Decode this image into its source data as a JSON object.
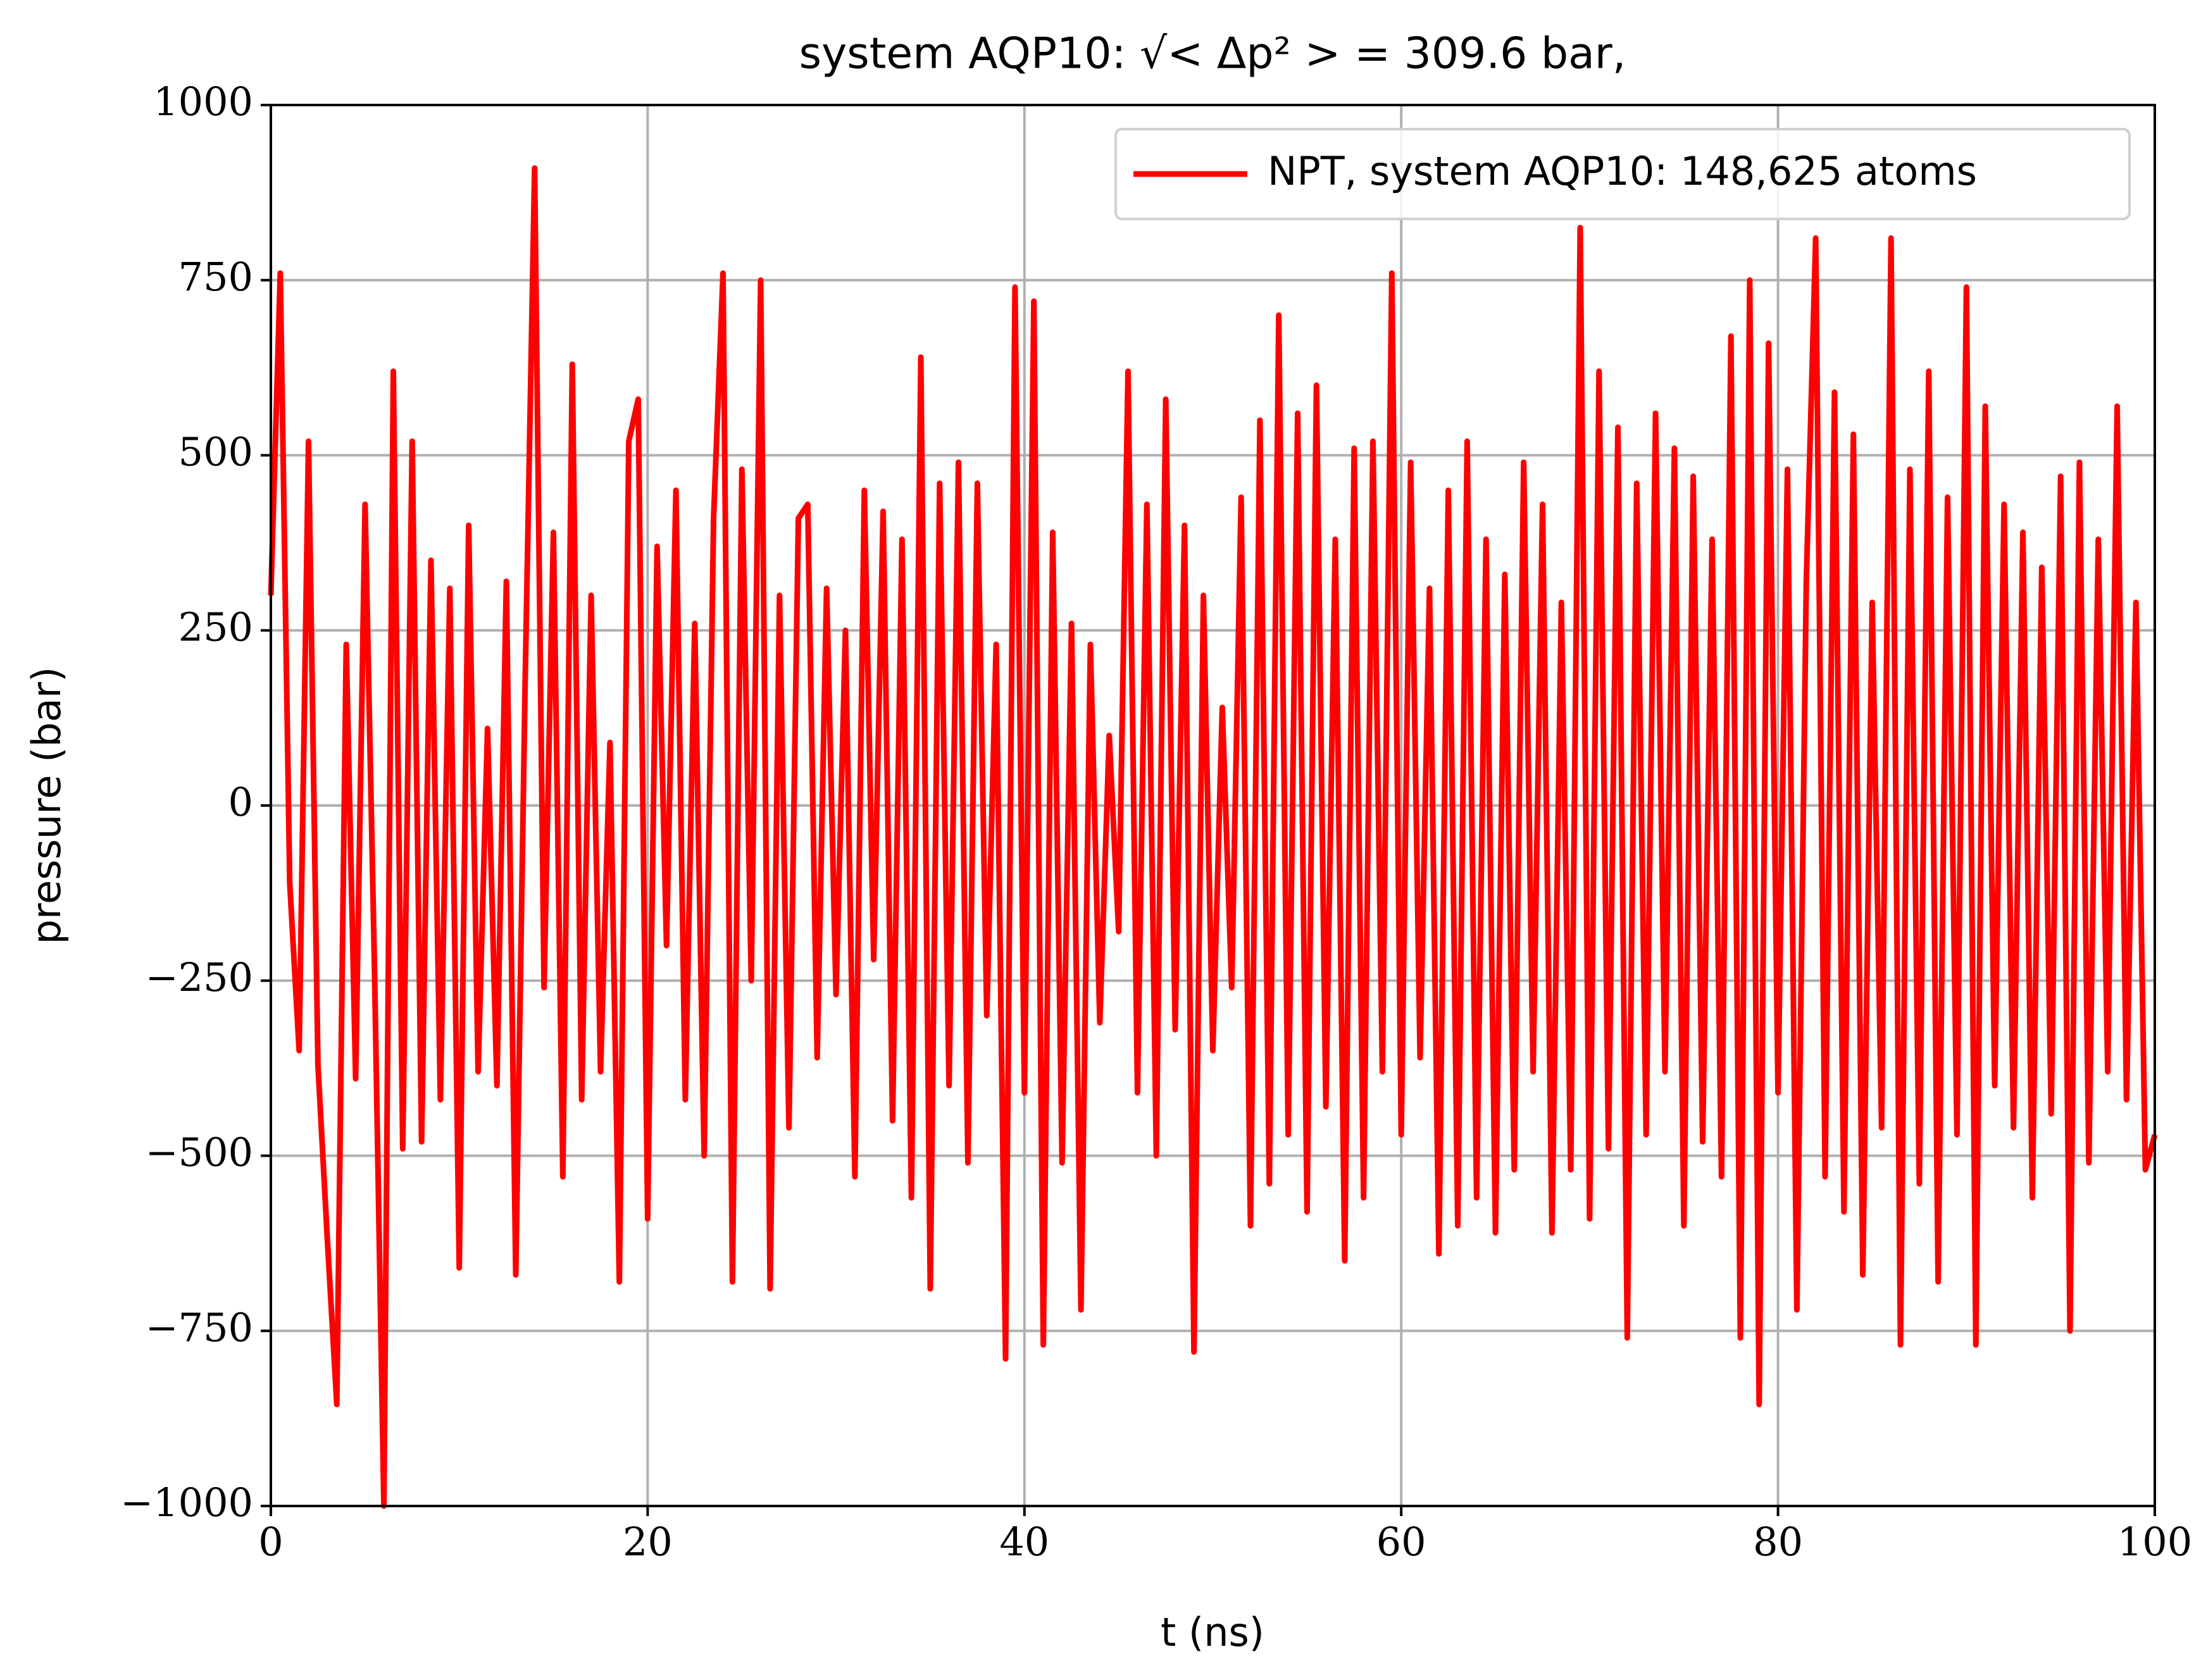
{
  "chart_data": {
    "type": "line",
    "title": "system AQP10: √< Δp² > = 309.6 bar,",
    "x_label": "t (ns)",
    "y_label": "pressure (bar)",
    "xlim": [
      0,
      100
    ],
    "ylim": [
      -1000,
      1000
    ],
    "xticks": [
      0,
      20,
      40,
      60,
      80,
      100
    ],
    "yticks": [
      {
        "value": -1000,
        "label": "−1000"
      },
      {
        "value": -750,
        "label": "−750"
      },
      {
        "value": -500,
        "label": "−500"
      },
      {
        "value": -250,
        "label": "−250"
      },
      0,
      250,
      500,
      750,
      1000
    ],
    "grid": true,
    "legend": "upper right",
    "x": [
      0,
      0.5,
      1,
      1.5,
      2,
      2.5,
      3,
      3.5,
      4,
      4.5,
      5,
      5.5,
      6,
      6.5,
      7,
      7.5,
      8,
      8.5,
      9,
      9.5,
      10,
      10.5,
      11,
      11.5,
      12,
      12.5,
      13,
      13.5,
      14,
      14.5,
      15,
      15.5,
      16,
      16.5,
      17,
      17.5,
      18,
      18.5,
      19,
      19.5,
      20,
      20.5,
      21,
      21.5,
      22,
      22.5,
      23,
      23.5,
      24,
      24.5,
      25,
      25.5,
      26,
      26.5,
      27,
      27.5,
      28,
      28.5,
      29,
      29.5,
      30,
      30.5,
      31,
      31.5,
      32,
      32.5,
      33,
      33.5,
      34,
      34.5,
      35,
      35.5,
      36,
      36.5,
      37,
      37.5,
      38,
      38.5,
      39,
      39.5,
      40,
      40.5,
      41,
      41.5,
      42,
      42.5,
      43,
      43.5,
      44,
      44.5,
      45,
      45.5,
      46,
      46.5,
      47,
      47.5,
      48,
      48.5,
      49,
      49.5,
      50,
      50.5,
      51,
      51.5,
      52,
      52.5,
      53,
      53.5,
      54,
      54.5,
      55,
      55.5,
      56,
      56.5,
      57,
      57.5,
      58,
      58.5,
      59,
      59.5,
      60,
      60.5,
      61,
      61.5,
      62,
      62.5,
      63,
      63.5,
      64,
      64.5,
      65,
      65.5,
      66,
      66.5,
      67,
      67.5,
      68,
      68.5,
      69,
      69.5,
      70,
      70.5,
      71,
      71.5,
      72,
      72.5,
      73,
      73.5,
      74,
      74.5,
      75,
      75.5,
      76,
      76.5,
      77,
      77.5,
      78,
      78.5,
      79,
      79.5,
      80,
      80.5,
      81,
      81.5,
      82,
      82.5,
      83,
      83.5,
      84,
      84.5,
      85,
      85.5,
      86,
      86.5,
      87,
      87.5,
      88,
      88.5,
      89,
      89.5,
      90,
      90.5,
      91,
      91.5,
      92,
      92.5,
      93,
      93.5,
      94,
      94.5,
      95,
      95.5,
      96,
      96.5,
      97,
      97.5,
      98,
      98.5,
      99,
      99.5,
      100
    ],
    "series": [
      {
        "name": "NPT, system AQP10: 148,625 atoms",
        "color": "#ff0000",
        "values": [
          300,
          760,
          -110,
          -350,
          520,
          -370,
          -620,
          -855,
          230,
          -390,
          430,
          -230,
          -1000,
          620,
          -490,
          520,
          -480,
          350,
          -420,
          310,
          -660,
          400,
          -380,
          110,
          -400,
          320,
          -670,
          180,
          910,
          -260,
          390,
          -530,
          630,
          -420,
          300,
          -380,
          90,
          -680,
          520,
          580,
          -590,
          370,
          -200,
          450,
          -420,
          260,
          -500,
          410,
          760,
          -680,
          480,
          -250,
          750,
          -690,
          300,
          -460,
          410,
          430,
          -360,
          310,
          -270,
          250,
          -530,
          450,
          -220,
          420,
          -450,
          380,
          -560,
          640,
          -690,
          460,
          -400,
          490,
          -510,
          460,
          -300,
          230,
          -790,
          740,
          -410,
          720,
          -770,
          390,
          -510,
          260,
          -720,
          230,
          -310,
          100,
          -180,
          620,
          -410,
          430,
          -500,
          580,
          -320,
          400,
          -780,
          300,
          -350,
          140,
          -260,
          440,
          -600,
          550,
          -540,
          700,
          -470,
          560,
          -580,
          600,
          -430,
          380,
          -650,
          510,
          -560,
          520,
          -380,
          760,
          -470,
          490,
          -360,
          310,
          -640,
          450,
          -600,
          520,
          -560,
          380,
          -610,
          330,
          -520,
          490,
          -380,
          430,
          -610,
          290,
          -520,
          825,
          -590,
          620,
          -490,
          540,
          -760,
          460,
          -470,
          560,
          -380,
          510,
          -600,
          470,
          -480,
          380,
          -530,
          670,
          -760,
          750,
          -855,
          660,
          -410,
          480,
          -720,
          320,
          810,
          -530,
          590,
          -580,
          530,
          -670,
          290,
          -460,
          810,
          -770,
          480,
          -540,
          620,
          -680,
          440,
          -470,
          740,
          -770,
          570,
          -400,
          430,
          -460,
          390,
          -560,
          340,
          -440,
          470,
          -750,
          490,
          -510,
          380,
          -380,
          570,
          -420,
          290,
          -520,
          -470
        ]
      }
    ]
  }
}
